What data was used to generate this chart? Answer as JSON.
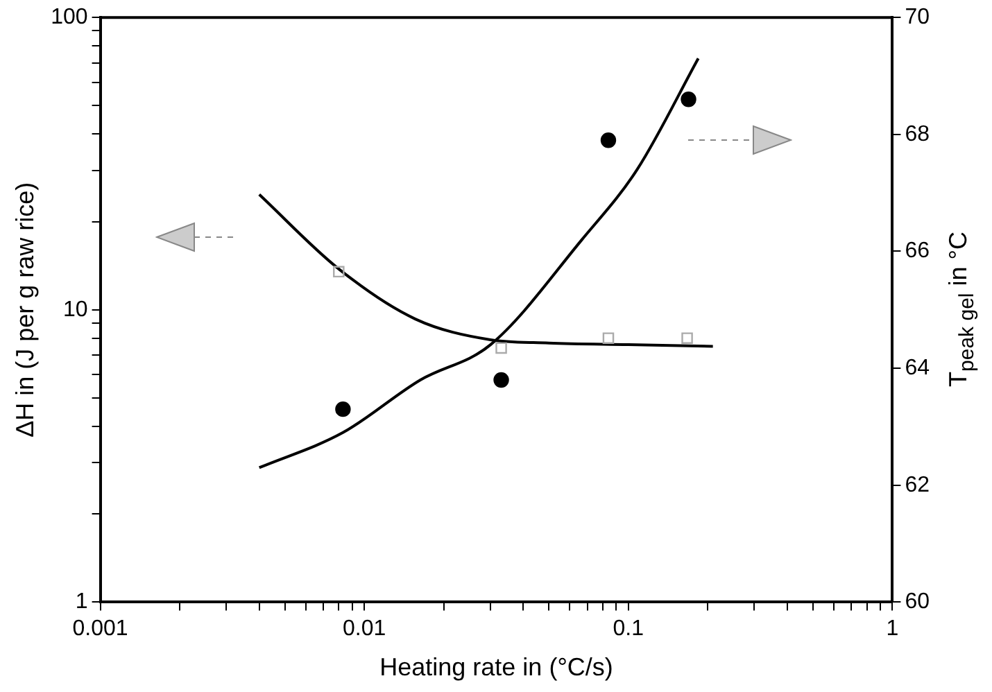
{
  "chart_data": {
    "type": "scatter",
    "xlabel": "Heating rate in (°C/s)",
    "ylabel": "ΔH in (J per g raw rice)",
    "y2label": "T$_{peak gel}$ in °C",
    "log": "xy",
    "grid": false,
    "legend": false,
    "xlim": [
      0.001,
      1
    ],
    "ylim": [
      1,
      100
    ],
    "y2lim": [
      60,
      70
    ],
    "xticks": [
      0.001,
      {
        "value": 0.002,
        "label": null
      },
      {
        "value": 0.003,
        "label": null
      },
      {
        "value": 0.004,
        "label": null
      },
      {
        "value": 0.005,
        "label": null
      },
      {
        "value": 0.006,
        "label": null
      },
      {
        "value": 0.007,
        "label": null
      },
      {
        "value": 0.008,
        "label": null
      },
      {
        "value": 0.009,
        "label": null
      },
      0.01,
      {
        "value": 0.02,
        "label": null
      },
      {
        "value": 0.03,
        "label": null
      },
      {
        "value": 0.04,
        "label": null
      },
      {
        "value": 0.05,
        "label": null
      },
      {
        "value": 0.06,
        "label": null
      },
      {
        "value": 0.07,
        "label": null
      },
      {
        "value": 0.08,
        "label": null
      },
      {
        "value": 0.09,
        "label": null
      },
      0.1,
      {
        "value": 0.2,
        "label": null
      },
      {
        "value": 0.3,
        "label": null
      },
      {
        "value": 0.4,
        "label": null
      },
      {
        "value": 0.5,
        "label": null
      },
      {
        "value": 0.6,
        "label": null
      },
      {
        "value": 0.7,
        "label": null
      },
      {
        "value": 0.8,
        "label": null
      },
      {
        "value": 0.9,
        "label": null
      },
      1
    ],
    "yticks": [
      1,
      {
        "value": 2,
        "label": null
      },
      {
        "value": 3,
        "label": null
      },
      {
        "value": 4,
        "label": null
      },
      {
        "value": 5,
        "label": null
      },
      {
        "value": 6,
        "label": null
      },
      {
        "value": 7,
        "label": null
      },
      {
        "value": 8,
        "label": null
      },
      {
        "value": 9,
        "label": null
      },
      10,
      {
        "value": 20,
        "label": null
      },
      {
        "value": 30,
        "label": null
      },
      {
        "value": 40,
        "label": null
      },
      {
        "value": 50,
        "label": null
      },
      {
        "value": 60,
        "label": null
      },
      {
        "value": 70,
        "label": null
      },
      {
        "value": 80,
        "label": null
      },
      {
        "value": 90,
        "label": null
      },
      100
    ],
    "y2ticks": [
      60,
      62,
      64,
      66,
      68,
      70
    ],
    "series": [
      {
        "type": "scatter",
        "marker": "square",
        "color": "#aaaaaa",
        "axis": "y",
        "x": [
          0.008,
          0.033,
          0.084,
          0.167
        ],
        "values": [
          13.5,
          7.4,
          8.0,
          8.0
        ]
      },
      {
        "type": "scatter",
        "marker": "circle",
        "color": "#000000",
        "axis": "y2",
        "x": [
          0.0083,
          0.033,
          0.084,
          0.169
        ],
        "values": [
          63.3,
          63.8,
          67.9,
          68.6
        ]
      },
      {
        "type": "line",
        "marker": "none",
        "color": "#000000",
        "axis": "y",
        "x": [
          0.004,
          0.008,
          0.0156,
          0.03,
          0.05,
          0.1,
          0.209
        ],
        "values": [
          24.8,
          13.8,
          9.3,
          7.9,
          7.7,
          7.6,
          7.5
        ]
      },
      {
        "type": "line",
        "marker": "none",
        "color": "#000000",
        "axis": "y2",
        "x": [
          0.004,
          0.0083,
          0.0163,
          0.03,
          0.0667,
          0.108,
          0.184
        ],
        "values": [
          62.3,
          62.9,
          63.8,
          64.4,
          66.2,
          67.4,
          69.3
        ]
      }
    ]
  }
}
